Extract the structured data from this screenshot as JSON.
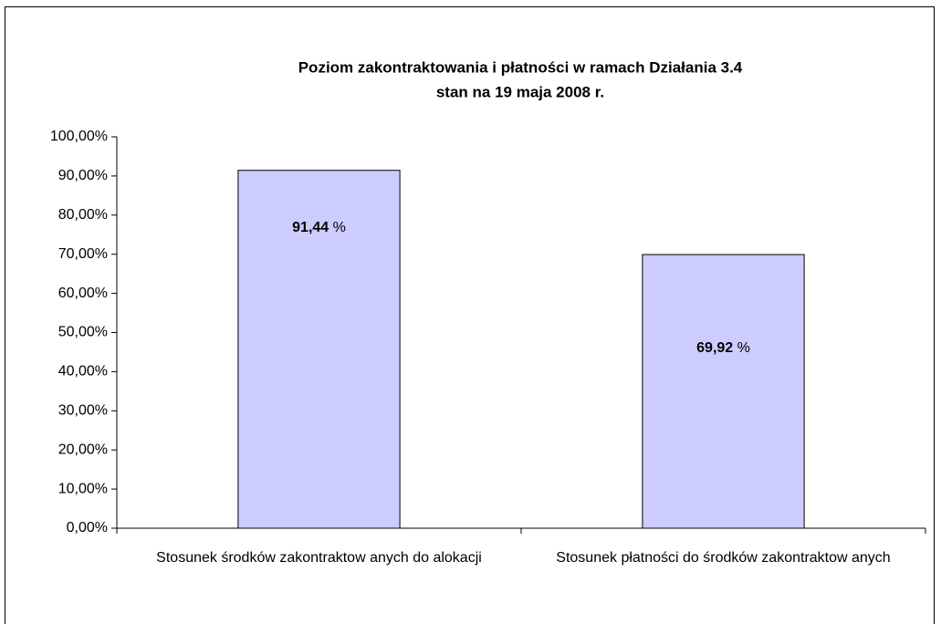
{
  "chart_data": {
    "type": "bar",
    "title": "Poziom zakontraktowania i płatności w ramach Działania 3.4",
    "subtitle": "stan na 19 maja 2008 r.",
    "categories": [
      "Stosunek środków  zakontraktow anych do alokacji",
      "Stosunek płatności do środków zakontraktow anych"
    ],
    "values": [
      91.44,
      69.92
    ],
    "value_labels": [
      "91,44 %",
      "69,92 %"
    ],
    "color": "#ccccff",
    "ylim": [
      0,
      100
    ],
    "yticks": [
      {
        "value": 0,
        "label": "0,00%"
      },
      {
        "value": 10,
        "label": "10,00%"
      },
      {
        "value": 20,
        "label": "20,00%"
      },
      {
        "value": 30,
        "label": "30,00%"
      },
      {
        "value": 40,
        "label": "40,00%"
      },
      {
        "value": 50,
        "label": "50,00%"
      },
      {
        "value": 60,
        "label": "60,00%"
      },
      {
        "value": 70,
        "label": "70,00%"
      },
      {
        "value": 80,
        "label": "80,00%"
      },
      {
        "value": 90,
        "label": "90,00%"
      },
      {
        "value": 100,
        "label": "100,00%"
      }
    ],
    "grid": false
  }
}
